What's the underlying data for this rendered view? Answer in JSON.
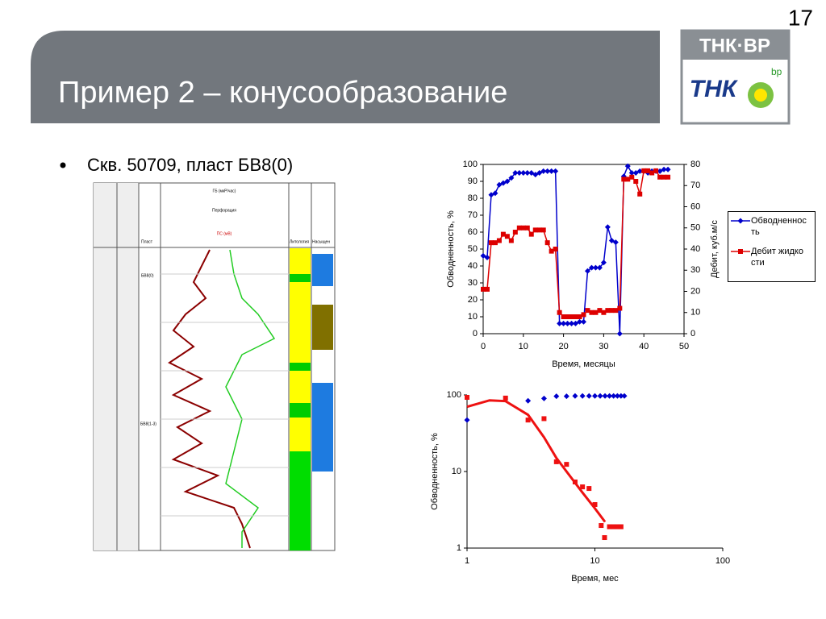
{
  "slide": {
    "page_number": "17",
    "title": "Пример 2 – конусообразование",
    "bullet": "Скв. 50709, пласт БВ8(0)",
    "logo_text": "ТНК·ВР",
    "logo_mark": "ТНК",
    "logo_bp": "bp"
  },
  "well_log": {
    "gr_label": "ГБ (мкР/час)",
    "perf_label": "Перфорация",
    "sp_label": "ПС (мВ)",
    "layer_label": "Пласт",
    "layer_top": "БВ8(0)",
    "layer_bottom": "БВ8(1-3)",
    "lith_label": "Литология",
    "sat_label": "Насыщен"
  },
  "chart_data": [
    {
      "type": "line",
      "xlabel": "Время, месяцы",
      "ylabel": "Обводненность, %",
      "y2label": "Дебит, куб.м/с",
      "x": [
        0,
        1,
        2,
        3,
        4,
        5,
        6,
        7,
        8,
        9,
        10,
        11,
        12,
        13,
        14,
        15,
        16,
        17,
        18,
        19,
        20,
        21,
        22,
        23,
        24,
        25,
        26,
        27,
        28,
        29,
        30,
        31,
        32,
        33,
        34,
        35,
        36,
        37,
        38,
        39,
        40,
        41,
        42,
        43,
        44,
        45,
        46
      ],
      "series": [
        {
          "name": "Обводненность",
          "color": "#0000cc",
          "marker": "diamond",
          "values": [
            46,
            45,
            82,
            83,
            88,
            89,
            90,
            92,
            95,
            95,
            95,
            95,
            95,
            94,
            95,
            96,
            96,
            96,
            96,
            6,
            6,
            6,
            6,
            6,
            7,
            7,
            37,
            39,
            39,
            39,
            42,
            63,
            55,
            54,
            0,
            93,
            99,
            95,
            95,
            96,
            96,
            95,
            96,
            96,
            96,
            97,
            97
          ]
        },
        {
          "name": "Дебит жидкости",
          "color": "#dd0000",
          "marker": "square",
          "axis": "y2",
          "values": [
            21,
            21,
            43,
            43,
            44,
            47,
            46,
            44,
            48,
            50,
            50,
            50,
            47,
            49,
            49,
            49,
            43,
            39,
            40,
            10,
            8,
            8,
            8,
            8,
            8,
            9,
            11,
            10,
            10,
            11,
            10,
            11,
            11,
            11,
            12,
            73,
            73,
            74,
            72,
            66,
            77,
            77,
            76,
            77,
            74,
            74,
            74
          ]
        }
      ],
      "xlim": [
        0,
        50
      ],
      "xticks": [
        0,
        10,
        20,
        30,
        40,
        50
      ],
      "ylim": [
        0,
        100
      ],
      "yticks": [
        0,
        10,
        20,
        30,
        40,
        50,
        60,
        70,
        80,
        90,
        100
      ],
      "y2lim": [
        0,
        80
      ],
      "y2ticks": [
        0,
        10,
        20,
        30,
        40,
        50,
        60,
        70,
        80
      ],
      "legend": "right"
    },
    {
      "type": "scatter",
      "xlabel": "Время, мес",
      "ylabel": "Обводненность, %",
      "xlog": true,
      "ylog": true,
      "series": [
        {
          "color": "#0000cc",
          "marker": "diamond",
          "x": [
            1,
            3,
            4,
            5,
            6,
            7,
            8,
            9,
            10,
            11,
            12,
            13,
            14,
            15,
            16,
            17
          ],
          "values": [
            47,
            84,
            90,
            96,
            96,
            97,
            97,
            97,
            97,
            97,
            97,
            97,
            97,
            97,
            97,
            97
          ]
        },
        {
          "color": "#ee1111",
          "marker": "square",
          "x": [
            1,
            2,
            3,
            4,
            5,
            6,
            7,
            8,
            9,
            10,
            11.2,
            11.9,
            13,
            14,
            15,
            16
          ],
          "values": [
            93,
            91,
            47,
            49,
            13.4,
            12.4,
            7.3,
            6.3,
            6,
            3.7,
            1.97,
            1.37,
            1.9,
            1.9,
            1.9,
            1.9
          ]
        },
        {
          "color": "#ee1111",
          "marker": "none",
          "x": [
            1,
            1.5,
            2,
            3,
            4,
            5,
            6,
            8,
            10,
            12
          ],
          "values": [
            70,
            85,
            83,
            55,
            28,
            15,
            10,
            5.3,
            3.3,
            2.2
          ]
        }
      ],
      "xlim": [
        1,
        100
      ],
      "xticks": [
        1,
        10,
        100
      ],
      "ylim": [
        1,
        100
      ],
      "yticks": [
        1,
        10,
        100
      ]
    }
  ]
}
